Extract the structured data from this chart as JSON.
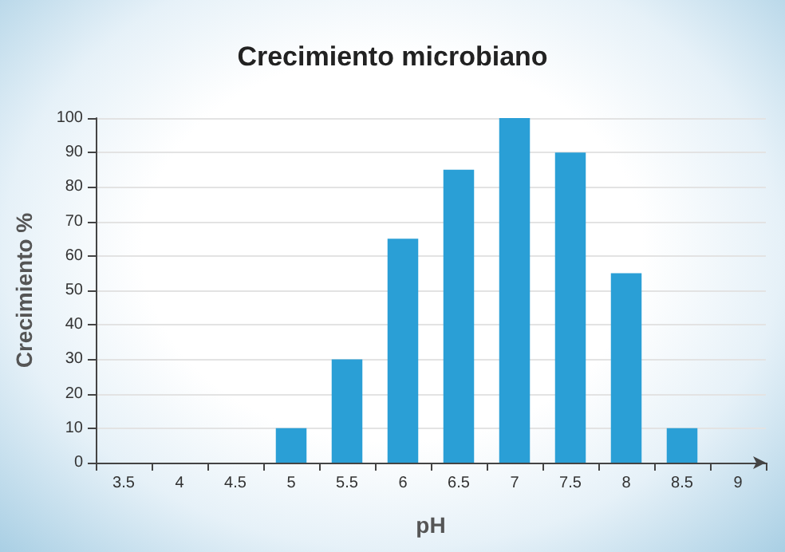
{
  "chart_data": {
    "type": "bar",
    "title": "Crecimiento microbiano",
    "xlabel": "pH",
    "ylabel": "Crecimiento %",
    "categories": [
      "3.5",
      "4",
      "4.5",
      "5",
      "5.5",
      "6",
      "6.5",
      "7",
      "7.5",
      "8",
      "8.5",
      "9"
    ],
    "values": [
      null,
      null,
      null,
      10,
      30,
      65,
      85,
      100,
      90,
      55,
      10,
      null
    ],
    "color": "#2a9fd6",
    "ylim": [
      0,
      100
    ],
    "yticks": [
      0,
      10,
      20,
      30,
      40,
      50,
      60,
      70,
      80,
      90,
      100
    ],
    "grid": "y"
  }
}
